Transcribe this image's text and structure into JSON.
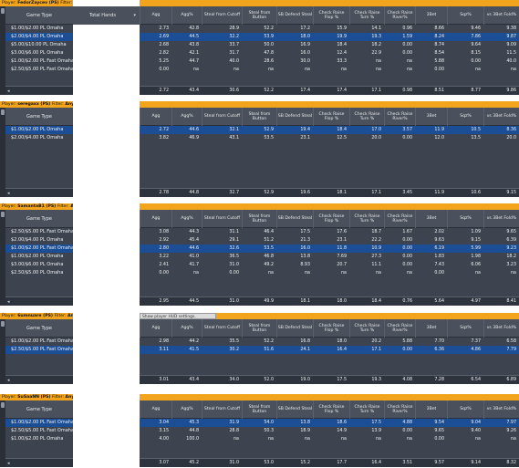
{
  "columns": [
    "Agg",
    "Agg%",
    "Steal from Cutoff",
    "Steal from Button",
    "SB Defend Steal",
    "Check Raise Flop %",
    "Check Raise Turn %",
    "Check Raise River%",
    "3Bet",
    "Sqz%",
    "vs 3Bet Fold%"
  ],
  "game_type_header": "Game Type",
  "total_hands_header": "Total Hands",
  "tooltip": "Show player HUD settings.",
  "filter_label": "Filter:",
  "panels": [
    {
      "player": "FedorZaycev (PS)",
      "filter": "Any date",
      "games": [
        "$1.00/$2.00 PL Omaha",
        "$2.00/$4.00 PL Omaha",
        "$5.00/$10.00 PL Omaha",
        "$3.00/$6.00 PL Omaha",
        "$1.00/$2.00 PL Fast Omaha",
        "$2.50/$5.00 PL Fast Omaha"
      ],
      "selected": 1,
      "rows": [
        [
          "2.73",
          "42.8",
          "28.9",
          "52.2",
          "17.2",
          "15.9",
          "14.1",
          "0.96",
          "8.66",
          "9.46",
          "9.38"
        ],
        [
          "2.69",
          "44.5",
          "32.2",
          "53.9",
          "18.0",
          "19.9",
          "19.3",
          "1.59",
          "8.24",
          "7.86",
          "9.87"
        ],
        [
          "2.68",
          "43.8",
          "33.7",
          "50.0",
          "16.9",
          "18.4",
          "18.2",
          "0.00",
          "8.74",
          "9.64",
          "9.09"
        ],
        [
          "2.82",
          "42.1",
          "31.7",
          "47.8",
          "16.0",
          "12.4",
          "22.9",
          "0.00",
          "8.54",
          "8.15",
          "11.5"
        ],
        [
          "5.25",
          "44.7",
          "40.0",
          "28.6",
          "30.0",
          "33.3",
          "na",
          "na",
          "5.88",
          "0.00",
          "40.0"
        ],
        [
          "0.00",
          "na",
          "na",
          "na",
          "na",
          "na",
          "na",
          "na",
          "0.00",
          "na",
          "na"
        ]
      ],
      "totals": [
        "2.72",
        "43.4",
        "30.6",
        "52.2",
        "17.4",
        "17.4",
        "17.1",
        "0.98",
        "8.51",
        "8.77",
        "9.86"
      ]
    },
    {
      "player": "seregaxx (PS)",
      "filter": "Any date",
      "games": [
        "$1.00/$2.00 PL Omaha",
        "$2.00/$4.00 PL Omaha"
      ],
      "selected": 0,
      "rows": [
        [
          "2.72",
          "44.6",
          "32.1",
          "52.9",
          "19.4",
          "18.4",
          "17.0",
          "3.57",
          "11.9",
          "10.5",
          "8.36"
        ],
        [
          "3.82",
          "46.9",
          "43.1",
          "53.5",
          "23.1",
          "12.5",
          "20.0",
          "0.00",
          "12.0",
          "13.5",
          "20.0"
        ]
      ],
      "totals": [
        "2.78",
        "44.8",
        "32.7",
        "52.9",
        "19.6",
        "18.1",
        "17.1",
        "3.45",
        "11.9",
        "10.6",
        "9.15"
      ]
    },
    {
      "player": "SamantaB1 (PS)",
      "filter": "Any date",
      "games": [
        "$2.50/$5.00 PL Fast Omaha",
        "$2.00/$4.00 PL Omaha",
        "$1.00/$2.00 PL Fast Omaha",
        "$1.00/$2.00 PL Omaha",
        "$3.00/$6.00 PL Omaha",
        "$2.50/$5.00 PL Omaha"
      ],
      "selected": 2,
      "rows": [
        [
          "3.08",
          "44.3",
          "31.1",
          "46.4",
          "17.5",
          "17.6",
          "18.7",
          "1.67",
          "2.02",
          "1.09",
          "9.65"
        ],
        [
          "2.92",
          "45.4",
          "29.1",
          "51.2",
          "21.3",
          "23.1",
          "22.2",
          "0.00",
          "9.63",
          "9.15",
          "6.39"
        ],
        [
          "2.80",
          "44.6",
          "32.6",
          "53.5",
          "16.0",
          "11.8",
          "10.9",
          "0.00",
          "6.19",
          "5.99",
          "9.23"
        ],
        [
          "3.22",
          "41.0",
          "36.5",
          "46.8",
          "13.8",
          "7.69",
          "27.3",
          "0.00",
          "1.83",
          "1.98",
          "18.2"
        ],
        [
          "2.41",
          "41.7",
          "31.0",
          "49.2",
          "8.93",
          "20.7",
          "11.1",
          "0.00",
          "7.43",
          "6.06",
          "3.23"
        ],
        [
          "0.00",
          "na",
          "0.00",
          "na",
          "na",
          "na",
          "na",
          "na",
          "0.00",
          "na",
          "na"
        ]
      ],
      "totals": [
        "2.95",
        "44.5",
        "31.0",
        "49.9",
        "18.1",
        "18.0",
        "18.4",
        "0.76",
        "5.64",
        "4.97",
        "8.41"
      ]
    },
    {
      "player": "6umnuare (PS)",
      "filter": "Any date",
      "games": [
        "$1.00/$2.00 PL Fast Omaha",
        "$2.50/$5.00 PL Fast Omaha"
      ],
      "selected": 1,
      "rows": [
        [
          "2.98",
          "44.2",
          "35.5",
          "52.2",
          "16.8",
          "18.0",
          "20.2",
          "5.88",
          "7.70",
          "7.37",
          "6.58"
        ],
        [
          "3.11",
          "41.5",
          "30.2",
          "51.6",
          "24.1",
          "16.4",
          "17.1",
          "0.00",
          "6.36",
          "4.86",
          "7.79"
        ]
      ],
      "totals": [
        "3.01",
        "43.4",
        "34.0",
        "52.0",
        "19.0",
        "17.5",
        "19.3",
        "4.08",
        "7.28",
        "6.54",
        "6.89"
      ]
    },
    {
      "player": "SuSaaNN (PS)",
      "filter": "Any date",
      "games": [
        "$1.00/$2.00 PL Fast Omaha",
        "$2.50/$5.00 PL Fast Omaha",
        "$1.00/$2.00 PL Omaha"
      ],
      "selected": 0,
      "rows": [
        [
          "3.04",
          "45.3",
          "31.9",
          "54.0",
          "13.8",
          "18.6",
          "17.5",
          "4.88",
          "9.54",
          "9.04",
          "7.97"
        ],
        [
          "3.15",
          "44.8",
          "28.8",
          "50.3",
          "18.9",
          "14.9",
          "13.9",
          "0.00",
          "9.65",
          "9.40",
          "9.26"
        ],
        [
          "4.00",
          "100.0",
          "na",
          "na",
          "na",
          "na",
          "na",
          "na",
          "0.00",
          "na",
          "na"
        ]
      ],
      "totals": [
        "3.07",
        "45.2",
        "31.0",
        "53.0",
        "15.2",
        "17.7",
        "16.4",
        "3.51",
        "9.57",
        "9.14",
        "8.32"
      ]
    }
  ]
}
